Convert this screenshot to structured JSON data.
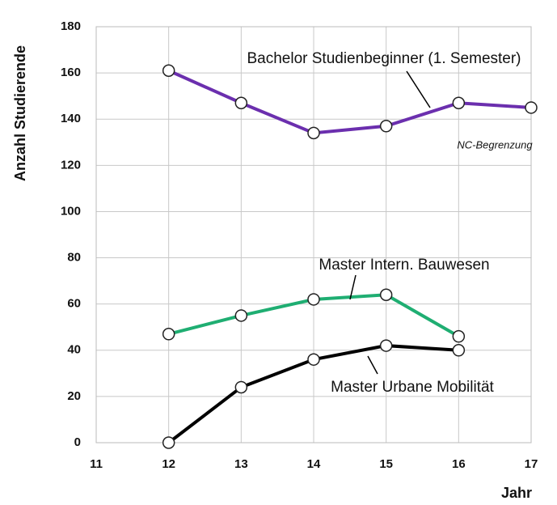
{
  "chart_data": {
    "type": "line",
    "xlabel": "Jahr",
    "ylabel": "Anzahl Studierende",
    "x": [
      12,
      13,
      14,
      15,
      16,
      17
    ],
    "series": [
      {
        "name": "Bachelor Studienbeginner (1. Semester)",
        "color": "#6b2fae",
        "values": [
          161,
          147,
          134,
          137,
          147,
          145
        ]
      },
      {
        "name": "Master Intern. Bauwesen",
        "color": "#1fae72",
        "values": [
          47,
          55,
          62,
          64,
          46,
          null
        ]
      },
      {
        "name": "Master Urbane Mobilität",
        "color": "#000000",
        "values": [
          0,
          24,
          36,
          42,
          40,
          null
        ]
      }
    ],
    "annotations": [
      "NC-Begrenzung"
    ],
    "xlim": [
      11,
      17
    ],
    "xticks": [
      11,
      12,
      13,
      14,
      15,
      16,
      17
    ],
    "ylim": [
      0,
      180
    ],
    "yticks": [
      0,
      20,
      40,
      60,
      80,
      100,
      120,
      140,
      160,
      180
    ],
    "grid": true
  }
}
